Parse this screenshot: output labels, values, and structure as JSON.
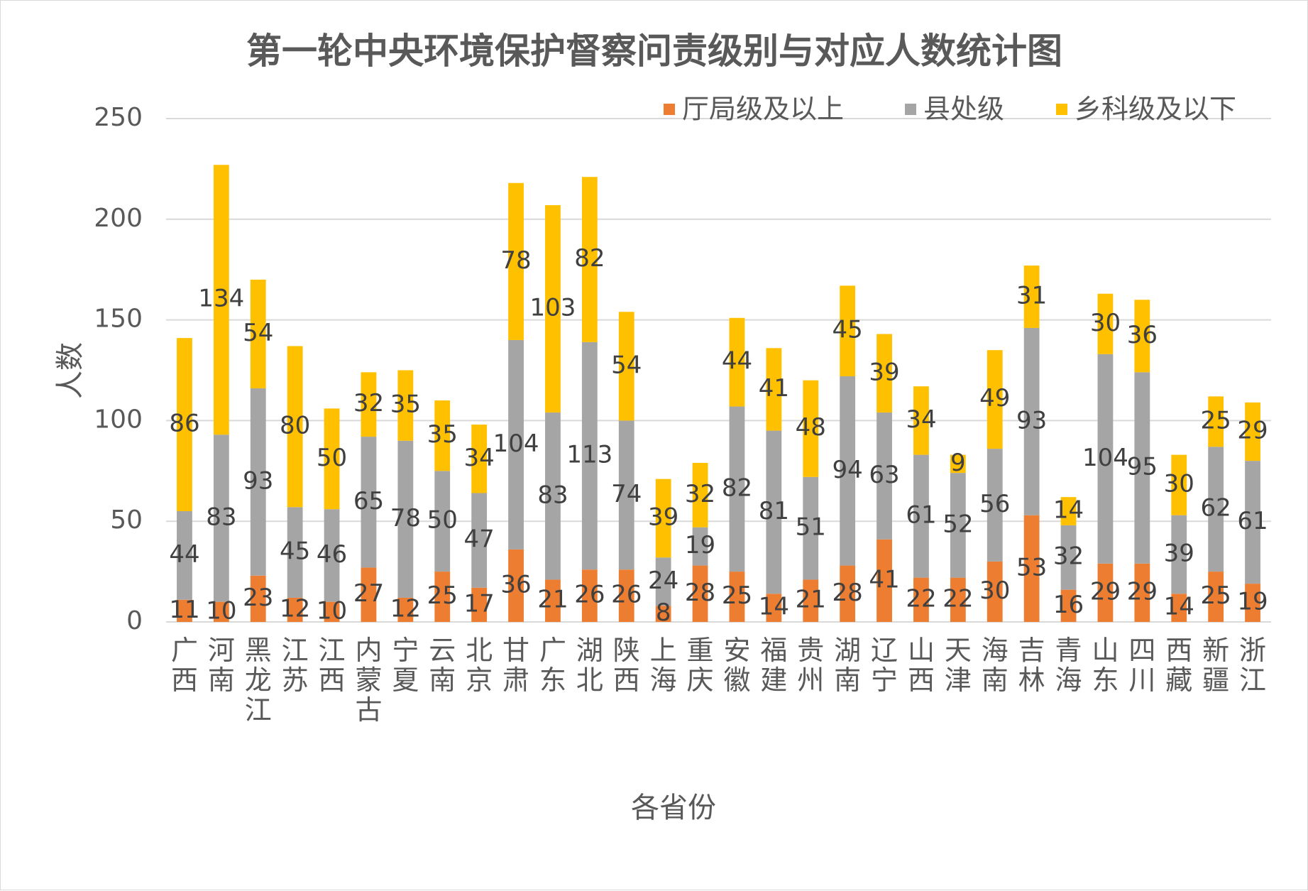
{
  "chart_data": {
    "type": "bar",
    "stacked": true,
    "title": "第一轮中央环境保护督察问责级别与对应人数统计图",
    "xlabel": "各省份",
    "ylabel": "人数",
    "ylim": [
      0,
      250
    ],
    "yticks": [
      0,
      50,
      100,
      150,
      200,
      250
    ],
    "grid": true,
    "legend_position": "top-right",
    "categories": [
      "广西",
      "河南",
      "黑龙江",
      "江苏",
      "江西",
      "内蒙古",
      "宁夏",
      "云南",
      "北京",
      "甘肃",
      "广东",
      "湖北",
      "陕西",
      "上海",
      "重庆",
      "安徽",
      "福建",
      "贵州",
      "湖南",
      "辽宁",
      "山西",
      "天津",
      "海南",
      "吉林",
      "青海",
      "山东",
      "四川",
      "西藏",
      "新疆",
      "浙江"
    ],
    "series": [
      {
        "name": "厅局级及以上",
        "color": "#ED7D31",
        "values": [
          11,
          10,
          23,
          12,
          10,
          27,
          12,
          25,
          17,
          36,
          21,
          26,
          26,
          8,
          28,
          25,
          14,
          21,
          28,
          41,
          22,
          22,
          30,
          53,
          16,
          29,
          29,
          14,
          25,
          19
        ]
      },
      {
        "name": "县处级",
        "color": "#A5A5A5",
        "values": [
          44,
          83,
          93,
          45,
          46,
          65,
          78,
          50,
          47,
          104,
          83,
          113,
          74,
          24,
          19,
          82,
          81,
          51,
          94,
          63,
          61,
          52,
          56,
          93,
          32,
          104,
          95,
          39,
          62,
          61
        ]
      },
      {
        "name": "乡科级及以下",
        "color": "#FFC000",
        "values": [
          86,
          134,
          54,
          80,
          50,
          32,
          35,
          35,
          34,
          78,
          103,
          82,
          54,
          39,
          32,
          44,
          41,
          48,
          45,
          39,
          34,
          9,
          49,
          31,
          14,
          30,
          36,
          30,
          25,
          29
        ]
      }
    ]
  }
}
